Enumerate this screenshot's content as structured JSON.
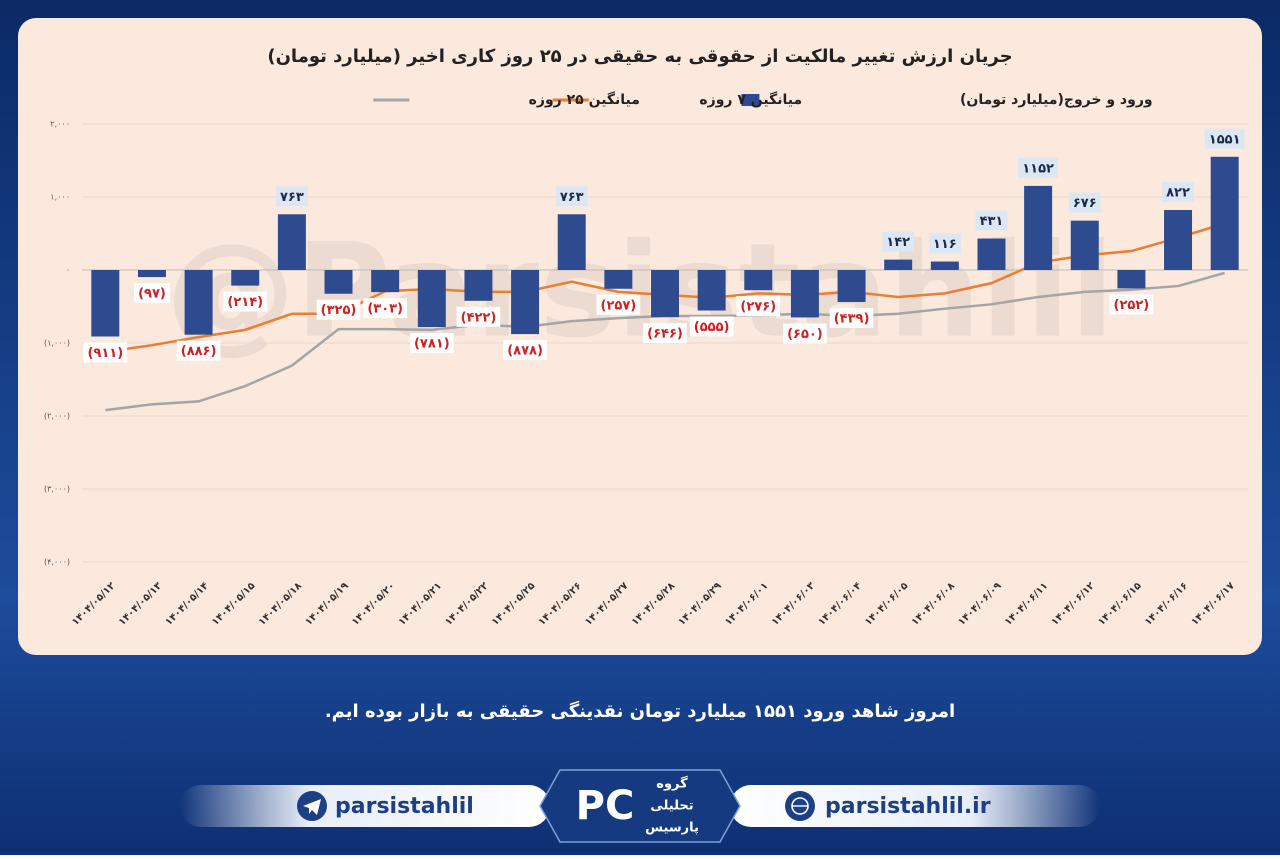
{
  "chart_data": {
    "type": "bar",
    "title": "جریان ارزش تغییر مالکیت از حقوقی به حقیقی در ۲۵ روز کاری اخیر (میلیارد تومان)",
    "watermark": "@Parsistahlil",
    "categories": [
      "۱۴۰۴/۰۵/۱۲",
      "۱۴۰۴/۰۵/۱۳",
      "۱۴۰۴/۰۵/۱۴",
      "۱۴۰۴/۰۵/۱۵",
      "۱۴۰۴/۰۵/۱۸",
      "۱۴۰۴/۰۵/۱۹",
      "۱۴۰۴/۰۵/۲۰",
      "۱۴۰۴/۰۵/۲۱",
      "۱۴۰۴/۰۵/۲۲",
      "۱۴۰۴/۰۵/۲۵",
      "۱۴۰۴/۰۵/۲۶",
      "۱۴۰۴/۰۵/۲۷",
      "۱۴۰۴/۰۵/۲۸",
      "۱۴۰۴/۰۵/۲۹",
      "۱۴۰۴/۰۶/۰۱",
      "۱۴۰۴/۰۶/۰۳",
      "۱۴۰۴/۰۶/۰۴",
      "۱۴۰۴/۰۶/۰۵",
      "۱۴۰۴/۰۶/۰۸",
      "۱۴۰۴/۰۶/۰۹",
      "۱۴۰۴/۰۶/۱۱",
      "۱۴۰۴/۰۶/۱۲",
      "۱۴۰۴/۰۶/۱۵",
      "۱۴۰۴/۰۶/۱۶",
      "۱۴۰۴/۰۶/۱۷"
    ],
    "series": [
      {
        "name": "ورود و خروج(میلیارد تومان)",
        "type": "bar",
        "color": "#2f4b8f",
        "values": [
          -911,
          -97,
          -886,
          -214,
          763,
          -325,
          -303,
          -781,
          -422,
          -878,
          763,
          -257,
          -646,
          -555,
          -276,
          -650,
          -439,
          142,
          116,
          431,
          1152,
          676,
          -252,
          822,
          1551
        ],
        "value_labels": [
          "(۹۱۱)",
          "(۹۷)",
          "(۸۸۶)",
          "(۲۱۴)",
          "۷۶۳",
          "(۳۲۵)",
          "(۳۰۳)",
          "(۷۸۱)",
          "(۴۲۲)",
          "(۸۷۸)",
          "۷۶۳",
          "(۲۵۷)",
          "(۶۴۶)",
          "(۵۵۵)",
          "(۲۷۶)",
          "(۶۵۰)",
          "(۴۳۹)",
          "۱۴۲",
          "۱۱۶",
          "۴۳۱",
          "۱۱۵۲",
          "۶۷۶",
          "(۲۵۲)",
          "۸۲۲",
          "۱۵۵۱"
        ]
      },
      {
        "name": "میانگین ۷ روزه",
        "type": "line",
        "color": "#ed7d31",
        "values": [
          -1120,
          -1030,
          -920,
          -820,
          -600,
          -600,
          -290,
          -260,
          -300,
          -300,
          -160,
          -300,
          -340,
          -380,
          -320,
          -340,
          -300,
          -370,
          -320,
          -180,
          100,
          200,
          260,
          440,
          640
        ]
      },
      {
        "name": "میانگین ۲۵ روزه",
        "type": "line",
        "color": "#a5a5a5",
        "values": [
          -1920,
          -1840,
          -1800,
          -1590,
          -1310,
          -810,
          -810,
          -820,
          -750,
          -780,
          -700,
          -660,
          -630,
          -630,
          -620,
          -600,
          -630,
          -600,
          -530,
          -470,
          -370,
          -300,
          -270,
          -220,
          -40
        ]
      }
    ],
    "ylim": [
      -4000,
      2000
    ],
    "yticks": [
      {
        "value": 2000,
        "label": "۲,۰۰۰"
      },
      {
        "value": 1000,
        "label": "۱,۰۰۰"
      },
      {
        "value": 0,
        "label": "۰"
      },
      {
        "value": -1000,
        "label": "(۱,۰۰۰)"
      },
      {
        "value": -2000,
        "label": "(۲,۰۰۰)"
      },
      {
        "value": -3000,
        "label": "(۳,۰۰۰)"
      },
      {
        "value": -4000,
        "label": "(۴,۰۰۰)"
      }
    ],
    "grid": true
  },
  "footer": {
    "note": "امروز شاهد ورود ۱۵۵۱ میلیارد تومان نقدینگی حقیقی به بازار بوده ایم.",
    "telegram": "parsistahlil",
    "website": "parsistahlil.ir",
    "logo_lines": [
      "گروه",
      "تحلیلی",
      "پارسیس"
    ]
  }
}
